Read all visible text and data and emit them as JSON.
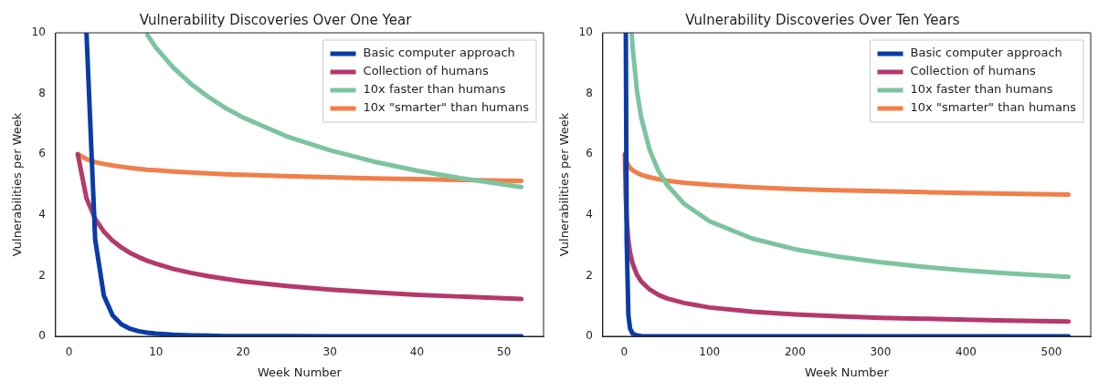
{
  "chart_data": [
    {
      "type": "line",
      "title": "Vulnerability Discoveries Over One Year",
      "xlabel": "Week Number",
      "ylabel": "Vulnerabilities per Week",
      "xlim": [
        -1.55,
        54.55
      ],
      "xticks": [
        0,
        10,
        20,
        30,
        40,
        50
      ],
      "ylim": [
        0,
        10
      ],
      "yticks": [
        0,
        2,
        4,
        6,
        8,
        10
      ],
      "legend": "top right",
      "series": [
        {
          "name": "Basic computer approach",
          "color": "#0a3ca8",
          "x": [
            2,
            3,
            4,
            5,
            6,
            7,
            8,
            9,
            10,
            12,
            14,
            16,
            18,
            20,
            25,
            30,
            35,
            40,
            45,
            52
          ],
          "values": [
            10,
            3.19,
            1.34,
            0.69,
            0.4,
            0.25,
            0.17,
            0.12,
            0.09,
            0.05,
            0.03,
            0.02,
            0.01,
            0.01,
            0.01,
            0,
            0,
            0,
            0,
            0
          ]
        },
        {
          "name": "Collection of humans",
          "color": "#b5396b",
          "x": [
            1,
            2,
            3,
            4,
            5,
            6,
            7,
            8,
            9,
            10,
            12,
            14,
            16,
            18,
            20,
            25,
            30,
            35,
            40,
            45,
            52
          ],
          "values": [
            6,
            4.55,
            3.87,
            3.45,
            3.15,
            2.93,
            2.75,
            2.61,
            2.49,
            2.39,
            2.22,
            2.09,
            1.98,
            1.89,
            1.81,
            1.66,
            1.54,
            1.45,
            1.37,
            1.31,
            1.23
          ]
        },
        {
          "name": "10x faster than humans",
          "color": "#7cc4a0",
          "x": [
            9,
            10,
            12,
            14,
            16,
            18,
            20,
            25,
            30,
            35,
            40,
            45,
            52
          ],
          "values": [
            9.93,
            9.51,
            8.85,
            8.32,
            7.89,
            7.52,
            7.21,
            6.59,
            6.13,
            5.76,
            5.46,
            5.21,
            4.92
          ]
        },
        {
          "name": "10x \"smarter\" than humans",
          "color": "#f07f4a",
          "x": [
            1,
            2,
            3,
            4,
            5,
            6,
            7,
            8,
            9,
            10,
            12,
            14,
            16,
            18,
            20,
            25,
            30,
            35,
            40,
            45,
            52
          ],
          "values": [
            6,
            5.84,
            5.74,
            5.68,
            5.63,
            5.59,
            5.55,
            5.52,
            5.49,
            5.47,
            5.43,
            5.4,
            5.37,
            5.34,
            5.32,
            5.28,
            5.24,
            5.2,
            5.18,
            5.15,
            5.12
          ]
        }
      ]
    },
    {
      "type": "line",
      "title": "Vulnerability Discoveries Over Ten Years",
      "xlabel": "Week Number",
      "ylabel": "Vulnerabilities per Week",
      "xlim": [
        -24.95,
        545.95
      ],
      "xticks": [
        0,
        100,
        200,
        300,
        400,
        500
      ],
      "ylim": [
        0,
        10
      ],
      "yticks": [
        0,
        2,
        4,
        6,
        8,
        10
      ],
      "legend": "top right",
      "series": [
        {
          "name": "Basic computer approach",
          "color": "#0a3ca8",
          "x": [
            2,
            3,
            5,
            7,
            10,
            15,
            20,
            30,
            50,
            100,
            200,
            300,
            400,
            520
          ],
          "values": [
            10,
            3.19,
            0.69,
            0.25,
            0.09,
            0.03,
            0.01,
            0,
            0,
            0,
            0,
            0,
            0,
            0
          ]
        },
        {
          "name": "Collection of humans",
          "color": "#b5396b",
          "x": [
            1,
            2,
            3,
            5,
            7,
            10,
            15,
            20,
            30,
            40,
            50,
            70,
            100,
            150,
            200,
            250,
            300,
            350,
            400,
            450,
            520
          ],
          "values": [
            6,
            4.55,
            3.87,
            3.15,
            2.75,
            2.39,
            2.03,
            1.81,
            1.54,
            1.37,
            1.25,
            1.1,
            0.95,
            0.81,
            0.72,
            0.66,
            0.61,
            0.58,
            0.55,
            0.52,
            0.49
          ]
        },
        {
          "name": "10x faster than humans",
          "color": "#7cc4a0",
          "x": [
            9,
            10,
            15,
            20,
            30,
            40,
            50,
            70,
            100,
            150,
            200,
            250,
            300,
            350,
            400,
            450,
            520
          ],
          "values": [
            9.93,
            9.51,
            8.09,
            7.21,
            6.13,
            5.46,
            5,
            4.37,
            3.79,
            3.22,
            2.87,
            2.63,
            2.44,
            2.29,
            2.17,
            2.07,
            1.96
          ]
        },
        {
          "name": "10x \"smarter\" than humans",
          "color": "#f07f4a",
          "x": [
            1,
            2,
            3,
            5,
            7,
            10,
            15,
            20,
            30,
            40,
            50,
            70,
            100,
            150,
            200,
            250,
            300,
            350,
            400,
            450,
            520
          ],
          "values": [
            6,
            5.84,
            5.74,
            5.63,
            5.55,
            5.47,
            5.39,
            5.32,
            5.24,
            5.18,
            5.13,
            5.06,
            4.99,
            4.91,
            4.85,
            4.81,
            4.78,
            4.75,
            4.72,
            4.7,
            4.67
          ]
        }
      ]
    }
  ]
}
